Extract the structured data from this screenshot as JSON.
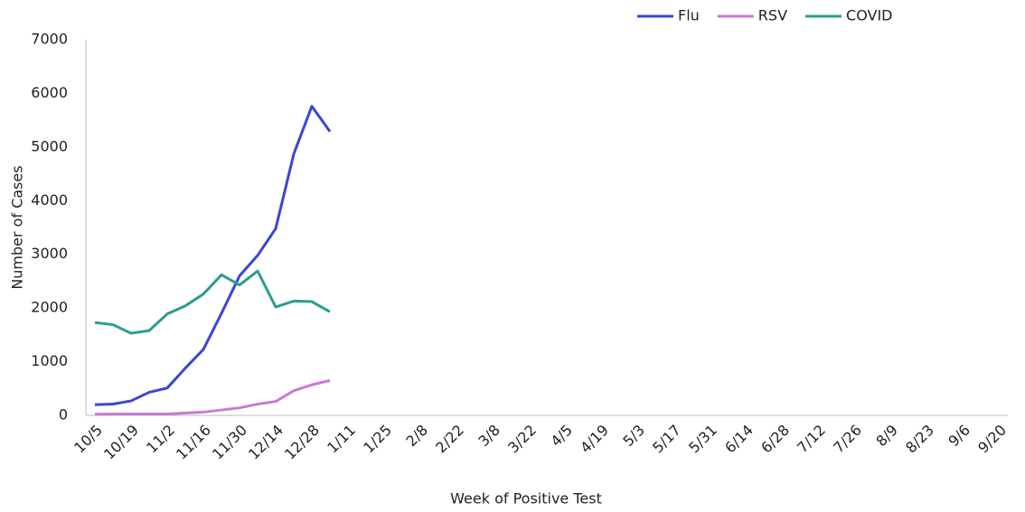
{
  "chart_data": {
    "type": "line",
    "x_label": "Week of Positive Test",
    "y_label": "Number of Cases",
    "categories": [
      "10/5",
      null,
      "10/19",
      null,
      "11/2",
      null,
      "11/16",
      null,
      "11/30",
      null,
      "12/14",
      null,
      "12/28",
      null,
      "1/11",
      null,
      "1/25",
      null,
      "2/8",
      null,
      "2/22",
      null,
      "3/8",
      null,
      "3/22",
      null,
      "4/5",
      null,
      "4/19",
      null,
      "5/3",
      null,
      "5/17",
      null,
      "5/31",
      null,
      "6/14",
      null,
      "6/28",
      null,
      "7/12",
      null,
      "7/26",
      null,
      "8/9",
      null,
      "8/23",
      null,
      "9/6",
      null,
      "9/20"
    ],
    "series": [
      {
        "name": "Flu",
        "color": "#3b45d6",
        "values": [
          200,
          210,
          270,
          430,
          510,
          880,
          1230,
          1900,
          2600,
          2980,
          3480,
          4870,
          5760,
          5290,
          null,
          null,
          null,
          null,
          null,
          null,
          null,
          null,
          null,
          null,
          null,
          null,
          null,
          null,
          null,
          null,
          null,
          null,
          null,
          null,
          null,
          null,
          null,
          null,
          null,
          null,
          null,
          null,
          null,
          null,
          null,
          null,
          null,
          null,
          null,
          null,
          null
        ]
      },
      {
        "name": "RSV",
        "color": "#c77ad6",
        "values": [
          20,
          25,
          25,
          25,
          25,
          45,
          60,
          100,
          140,
          210,
          260,
          460,
          570,
          650,
          null,
          null,
          null,
          null,
          null,
          null,
          null,
          null,
          null,
          null,
          null,
          null,
          null,
          null,
          null,
          null,
          null,
          null,
          null,
          null,
          null,
          null,
          null,
          null,
          null,
          null,
          null,
          null,
          null,
          null,
          null,
          null,
          null,
          null,
          null,
          null,
          null
        ]
      },
      {
        "name": "COVID",
        "color": "#2a9d8f",
        "values": [
          1730,
          1690,
          1530,
          1580,
          1890,
          2040,
          2260,
          2620,
          2430,
          2690,
          2020,
          2130,
          2120,
          1930,
          null,
          null,
          null,
          null,
          null,
          null,
          null,
          null,
          null,
          null,
          null,
          null,
          null,
          null,
          null,
          null,
          null,
          null,
          null,
          null,
          null,
          null,
          null,
          null,
          null,
          null,
          null,
          null,
          null,
          null,
          null,
          null,
          null,
          null,
          null,
          null,
          null
        ]
      }
    ],
    "ylim": [
      0,
      7000
    ],
    "yticks": [
      0,
      1000,
      2000,
      3000,
      4000,
      5000,
      6000,
      7000
    ],
    "grid": false,
    "legend": "top"
  }
}
